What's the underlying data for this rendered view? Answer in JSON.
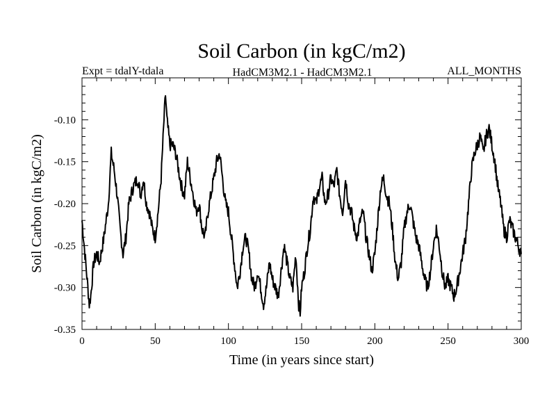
{
  "chart_data": {
    "type": "line",
    "title": "Soil Carbon (in kgC/m2)",
    "subtitle_left": "Expt = tdalY-tdala",
    "subtitle_center": "HadCM3M2.1 - HadCM3M2.1",
    "subtitle_right": "ALL_MONTHS",
    "xlabel": "Time (in years since start)",
    "ylabel": "Soil Carbon (in kgC/m2)",
    "xlim": [
      0,
      300
    ],
    "ylim": [
      -0.35,
      -0.05
    ],
    "xticks": [
      0,
      50,
      100,
      150,
      200,
      250,
      300
    ],
    "xtick_labels": [
      "0",
      "50",
      "100",
      "150",
      "200",
      "250",
      "300"
    ],
    "yticks": [
      -0.35,
      -0.3,
      -0.25,
      -0.2,
      -0.15,
      -0.1
    ],
    "ytick_labels": [
      "-0.35",
      "-0.30",
      "-0.25",
      "-0.20",
      "-0.15",
      "-0.10"
    ],
    "grid": false,
    "series": [
      {
        "name": "Soil Carbon",
        "color": "#000000",
        "x": [
          0,
          2,
          4,
          5,
          6,
          8,
          10,
          12,
          15,
          18,
          20,
          22,
          24,
          26,
          28,
          30,
          32,
          35,
          38,
          40,
          42,
          44,
          46,
          48,
          50,
          52,
          54,
          56,
          57,
          58,
          60,
          62,
          64,
          66,
          68,
          70,
          72,
          74,
          76,
          78,
          80,
          82,
          84,
          86,
          88,
          90,
          92,
          94,
          96,
          98,
          100,
          102,
          104,
          106,
          108,
          110,
          112,
          114,
          116,
          118,
          120,
          122,
          124,
          126,
          128,
          130,
          132,
          134,
          136,
          138,
          140,
          142,
          144,
          146,
          148,
          149,
          150,
          152,
          154,
          156,
          158,
          160,
          162,
          164,
          166,
          168,
          170,
          172,
          174,
          176,
          178,
          180,
          182,
          184,
          186,
          188,
          190,
          192,
          194,
          196,
          198,
          200,
          202,
          204,
          206,
          208,
          210,
          212,
          214,
          216,
          218,
          220,
          222,
          224,
          226,
          228,
          230,
          232,
          234,
          236,
          238,
          240,
          242,
          244,
          246,
          248,
          250,
          252,
          254,
          256,
          258,
          260,
          262,
          264,
          266,
          268,
          270,
          272,
          274,
          276,
          278,
          280,
          282,
          284,
          286,
          288,
          290,
          292,
          294,
          296,
          298,
          300
        ],
        "y": [
          -0.22,
          -0.26,
          -0.3,
          -0.32,
          -0.31,
          -0.27,
          -0.26,
          -0.27,
          -0.24,
          -0.2,
          -0.14,
          -0.16,
          -0.19,
          -0.23,
          -0.26,
          -0.24,
          -0.2,
          -0.18,
          -0.17,
          -0.19,
          -0.17,
          -0.2,
          -0.21,
          -0.23,
          -0.24,
          -0.21,
          -0.17,
          -0.1,
          -0.07,
          -0.1,
          -0.13,
          -0.13,
          -0.14,
          -0.16,
          -0.18,
          -0.19,
          -0.15,
          -0.17,
          -0.19,
          -0.21,
          -0.2,
          -0.23,
          -0.24,
          -0.21,
          -0.19,
          -0.17,
          -0.15,
          -0.14,
          -0.17,
          -0.2,
          -0.21,
          -0.24,
          -0.27,
          -0.3,
          -0.28,
          -0.25,
          -0.24,
          -0.26,
          -0.29,
          -0.3,
          -0.28,
          -0.3,
          -0.32,
          -0.3,
          -0.27,
          -0.29,
          -0.3,
          -0.31,
          -0.28,
          -0.25,
          -0.27,
          -0.29,
          -0.3,
          -0.26,
          -0.32,
          -0.33,
          -0.3,
          -0.28,
          -0.25,
          -0.23,
          -0.19,
          -0.2,
          -0.18,
          -0.17,
          -0.2,
          -0.19,
          -0.17,
          -0.18,
          -0.16,
          -0.19,
          -0.21,
          -0.17,
          -0.2,
          -0.21,
          -0.23,
          -0.24,
          -0.22,
          -0.21,
          -0.24,
          -0.26,
          -0.28,
          -0.26,
          -0.22,
          -0.18,
          -0.17,
          -0.19,
          -0.2,
          -0.23,
          -0.27,
          -0.29,
          -0.27,
          -0.23,
          -0.21,
          -0.2,
          -0.22,
          -0.24,
          -0.25,
          -0.27,
          -0.29,
          -0.3,
          -0.28,
          -0.25,
          -0.23,
          -0.25,
          -0.28,
          -0.3,
          -0.29,
          -0.3,
          -0.31,
          -0.3,
          -0.28,
          -0.26,
          -0.24,
          -0.2,
          -0.16,
          -0.14,
          -0.13,
          -0.12,
          -0.14,
          -0.12,
          -0.11,
          -0.13,
          -0.15,
          -0.18,
          -0.2,
          -0.23,
          -0.24,
          -0.22,
          -0.23,
          -0.24,
          -0.25,
          -0.26
        ]
      }
    ]
  }
}
